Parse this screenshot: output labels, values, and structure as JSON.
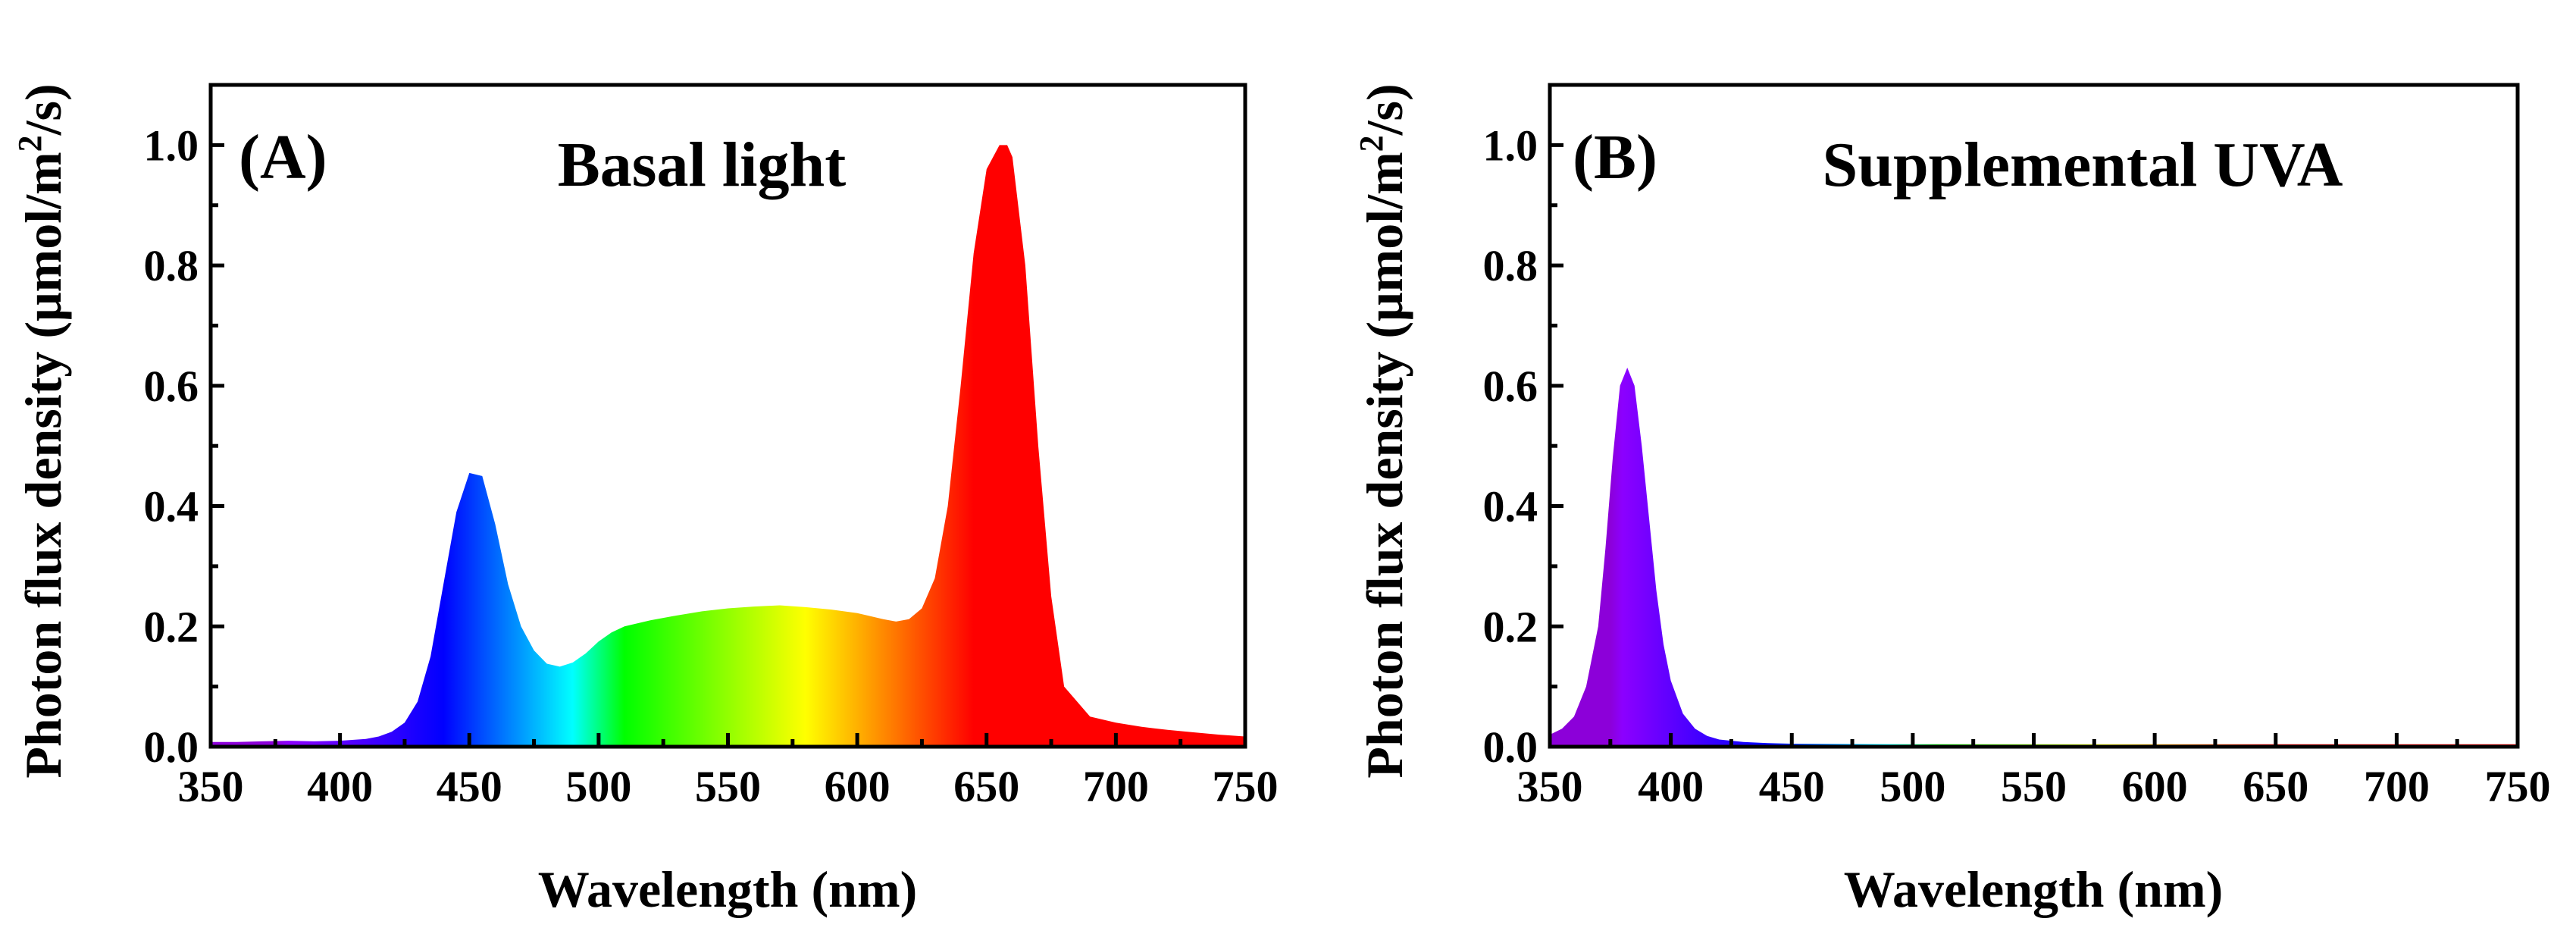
{
  "chart_data": [
    {
      "type": "area",
      "panel_label": "(A)",
      "title": "Basal light",
      "xlabel": "Wavelength (nm)",
      "ylabel_main": "Photon flux density (μmol/m",
      "ylabel_sup": "2",
      "ylabel_end": "/s)",
      "xlim": [
        350,
        750
      ],
      "ylim": [
        0,
        1.1
      ],
      "xticks": [
        350,
        400,
        450,
        500,
        550,
        600,
        650,
        700,
        750
      ],
      "yticks": [
        0.0,
        0.2,
        0.4,
        0.6,
        0.8,
        1.0
      ],
      "xtick_labels": [
        "350",
        "400",
        "450",
        "500",
        "550",
        "600",
        "650",
        "700",
        "750"
      ],
      "ytick_labels": [
        "0.0",
        "0.2",
        "0.4",
        "0.6",
        "0.8",
        "1.0"
      ],
      "fill": "wavelength-spectrum-gradient",
      "x": [
        350,
        360,
        370,
        380,
        390,
        400,
        410,
        415,
        420,
        425,
        430,
        435,
        440,
        445,
        450,
        455,
        460,
        465,
        470,
        475,
        480,
        485,
        490,
        495,
        500,
        505,
        510,
        520,
        530,
        540,
        550,
        560,
        570,
        580,
        590,
        600,
        610,
        615,
        620,
        625,
        630,
        635,
        640,
        645,
        650,
        655,
        658,
        660,
        665,
        670,
        675,
        680,
        690,
        700,
        710,
        720,
        730,
        740,
        750
      ],
      "y": [
        0.008,
        0.008,
        0.009,
        0.01,
        0.009,
        0.01,
        0.013,
        0.017,
        0.025,
        0.04,
        0.075,
        0.15,
        0.27,
        0.39,
        0.455,
        0.45,
        0.37,
        0.27,
        0.2,
        0.16,
        0.138,
        0.133,
        0.14,
        0.155,
        0.175,
        0.19,
        0.2,
        0.21,
        0.218,
        0.225,
        0.23,
        0.233,
        0.235,
        0.232,
        0.228,
        0.222,
        0.212,
        0.208,
        0.212,
        0.23,
        0.28,
        0.4,
        0.6,
        0.82,
        0.96,
        1.0,
        1.0,
        0.98,
        0.8,
        0.5,
        0.25,
        0.1,
        0.05,
        0.04,
        0.033,
        0.028,
        0.024,
        0.02,
        0.017
      ]
    },
    {
      "type": "area",
      "panel_label": "(B)",
      "title": "Supplemental UVA",
      "xlabel": "Wavelength (nm)",
      "ylabel_main": "Photon flux density (μmol/m",
      "ylabel_sup": "2",
      "ylabel_end": "/s)",
      "xlim": [
        350,
        750
      ],
      "ylim": [
        0,
        1.1
      ],
      "xticks": [
        350,
        400,
        450,
        500,
        550,
        600,
        650,
        700,
        750
      ],
      "yticks": [
        0.0,
        0.2,
        0.4,
        0.6,
        0.8,
        1.0
      ],
      "xtick_labels": [
        "350",
        "400",
        "450",
        "500",
        "550",
        "600",
        "650",
        "700",
        "750"
      ],
      "ytick_labels": [
        "0.0",
        "0.2",
        "0.4",
        "0.6",
        "0.8",
        "1.0"
      ],
      "fill": "wavelength-spectrum-gradient",
      "x": [
        350,
        355,
        360,
        365,
        370,
        373,
        376,
        379,
        382,
        385,
        388,
        391,
        394,
        397,
        400,
        405,
        410,
        415,
        420,
        430,
        440,
        450,
        500,
        550,
        600,
        650,
        700,
        750
      ],
      "y": [
        0.02,
        0.03,
        0.05,
        0.1,
        0.2,
        0.33,
        0.48,
        0.6,
        0.63,
        0.6,
        0.5,
        0.38,
        0.26,
        0.17,
        0.11,
        0.055,
        0.03,
        0.018,
        0.012,
        0.008,
        0.006,
        0.005,
        0.004,
        0.004,
        0.004,
        0.004,
        0.004,
        0.004
      ]
    }
  ]
}
